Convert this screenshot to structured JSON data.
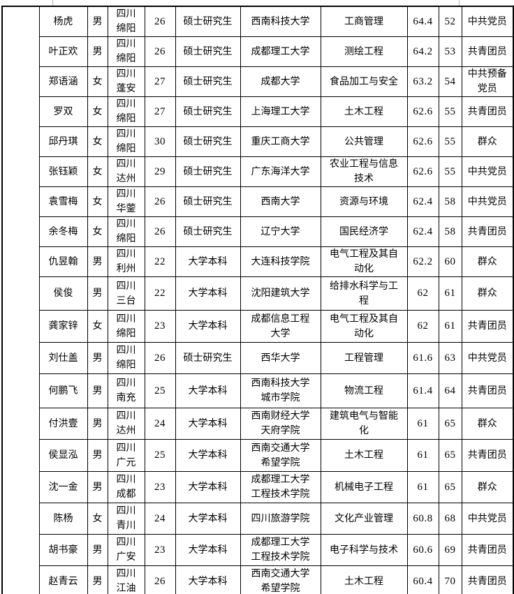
{
  "table": {
    "description_colors": {
      "grid": "#000000",
      "text": "#000000",
      "background": "#ffffff",
      "top_border_stub": "#b3b3b3"
    },
    "rows": [
      {
        "name": "杨虎",
        "gender": "男",
        "place": "四川\n绵阳",
        "age": "26",
        "education": "硕士研究生",
        "university": "西南科技大学",
        "major": "工商管理",
        "score": "64.4",
        "rank": "52",
        "political": "中共党员"
      },
      {
        "name": "叶正欢",
        "gender": "男",
        "place": "四川\n绵阳",
        "age": "26",
        "education": "硕士研究生",
        "university": "成都理工大学",
        "major": "测绘工程",
        "score": "64.2",
        "rank": "53",
        "political": "共青团员"
      },
      {
        "name": "郑语涵",
        "gender": "女",
        "place": "四川\n蓬安",
        "age": "27",
        "education": "硕士研究生",
        "university": "成都大学",
        "major": "食品加工与安全",
        "score": "63.2",
        "rank": "54",
        "political": "中共预备\n党员"
      },
      {
        "name": "罗双",
        "gender": "女",
        "place": "四川\n绵阳",
        "age": "27",
        "education": "硕士研究生",
        "university": "上海理工大学",
        "major": "土木工程",
        "score": "62.6",
        "rank": "55",
        "political": "共青团员"
      },
      {
        "name": "邱丹琪",
        "gender": "女",
        "place": "四川\n绵阳",
        "age": "30",
        "education": "硕士研究生",
        "university": "重庆工商大学",
        "major": "公共管理",
        "score": "62.6",
        "rank": "55",
        "political": "群众"
      },
      {
        "name": "张钰颖",
        "gender": "女",
        "place": "四川\n达州",
        "age": "29",
        "education": "硕士研究生",
        "university": "广东海洋大学",
        "major": "农业工程与信息\n技术",
        "score": "62.6",
        "rank": "55",
        "political": "中共党员"
      },
      {
        "name": "袁雪梅",
        "gender": "女",
        "place": "四川\n华蓥",
        "age": "26",
        "education": "硕士研究生",
        "university": "西南大学",
        "major": "资源与环境",
        "score": "62.4",
        "rank": "58",
        "political": "中共党员"
      },
      {
        "name": "余冬梅",
        "gender": "女",
        "place": "四川\n绵阳",
        "age": "26",
        "education": "硕士研究生",
        "university": "辽宁大学",
        "major": "国民经济学",
        "score": "62.4",
        "rank": "58",
        "political": "共青团员"
      },
      {
        "name": "仇昱翰",
        "gender": "男",
        "place": "四川\n利州",
        "age": "22",
        "education": "大学本科",
        "university": "大连科技学院",
        "major": "电气工程及其自\n动化",
        "score": "62.2",
        "rank": "60",
        "political": "群众"
      },
      {
        "name": "侯俊",
        "gender": "男",
        "place": "四川\n三台",
        "age": "22",
        "education": "大学本科",
        "university": "沈阳建筑大学",
        "major": "给排水科学与工\n程",
        "score": "62",
        "rank": "61",
        "political": "群众"
      },
      {
        "name": "龚家锌",
        "gender": "女",
        "place": "四川\n绵阳",
        "age": "23",
        "education": "大学本科",
        "university": "成都信息工程\n大学",
        "major": "电气工程及其自\n动化",
        "score": "62",
        "rank": "61",
        "political": "共青团员"
      },
      {
        "name": "刘仕盖",
        "gender": "男",
        "place": "四川\n绵阳",
        "age": "26",
        "education": "硕士研究生",
        "university": "西华大学",
        "major": "工程管理",
        "score": "61.6",
        "rank": "63",
        "political": "中共党员"
      },
      {
        "name": "何鹏飞",
        "gender": "男",
        "place": "四川\n南充",
        "age": "25",
        "education": "大学本科",
        "university": "西南科技大学\n城市学院",
        "major": "物流工程",
        "score": "61.4",
        "rank": "64",
        "political": "共青团员"
      },
      {
        "name": "付洪壹",
        "gender": "男",
        "place": "四川\n达州",
        "age": "24",
        "education": "大学本科",
        "university": "西南财经大学\n天府学院",
        "major": "建筑电气与智能\n化",
        "score": "61",
        "rank": "65",
        "political": "群众"
      },
      {
        "name": "侯显泓",
        "gender": "男",
        "place": "四川\n广元",
        "age": "25",
        "education": "大学本科",
        "university": "西南交通大学\n希望学院",
        "major": "土木工程",
        "score": "61",
        "rank": "65",
        "political": "共青团员"
      },
      {
        "name": "沈一金",
        "gender": "男",
        "place": "四川\n成都",
        "age": "23",
        "education": "大学本科",
        "university": "成都理工大学\n工程技术学院",
        "major": "机械电子工程",
        "score": "61",
        "rank": "65",
        "political": "群众"
      },
      {
        "name": "陈杨",
        "gender": "女",
        "place": "四川\n青川",
        "age": "24",
        "education": "大学本科",
        "university": "四川旅游学院",
        "major": "文化产业管理",
        "score": "60.8",
        "rank": "68",
        "political": "中共党员"
      },
      {
        "name": "胡书豪",
        "gender": "男",
        "place": "四川\n广安",
        "age": "23",
        "education": "大学本科",
        "university": "成都理工大学\n工程技术学院",
        "major": "电子科学与技术",
        "score": "60.6",
        "rank": "69",
        "political": "共青团员"
      },
      {
        "name": "赵青云",
        "gender": "男",
        "place": "四川\n江油",
        "age": "26",
        "education": "大学本科",
        "university": "西南交通大学\n希望学院",
        "major": "土木工程",
        "score": "60.4",
        "rank": "70",
        "political": "共青团员"
      }
    ]
  }
}
